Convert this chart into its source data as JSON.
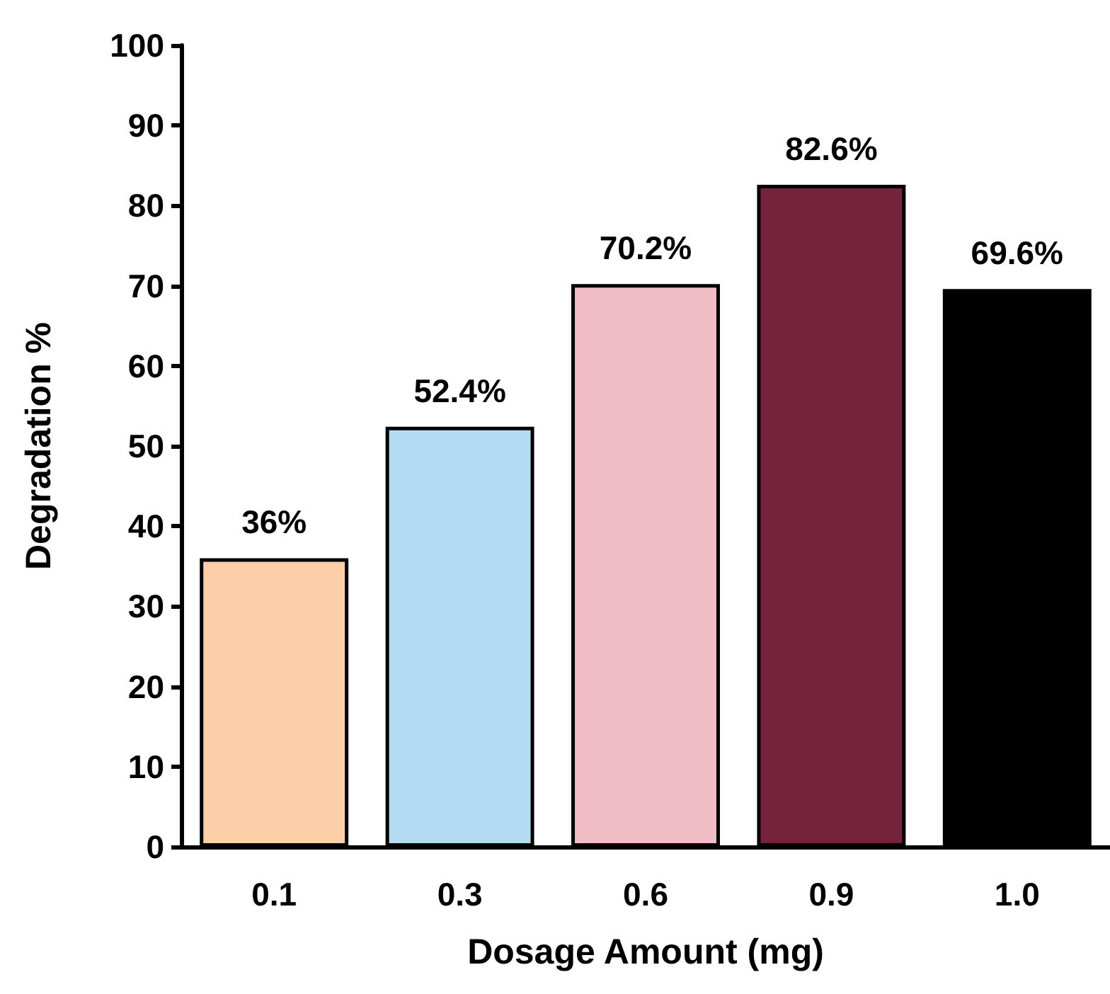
{
  "chart_data": {
    "type": "bar",
    "xlabel": "Dosage Amount (mg)",
    "ylabel": "Degradation %",
    "categories": [
      "0.1",
      "0.3",
      "0.6",
      "0.9",
      "1.0"
    ],
    "values": [
      36,
      52.4,
      70.2,
      82.6,
      69.6
    ],
    "value_labels": [
      "36%",
      "52.4%",
      "70.2%",
      "82.6%",
      "69.6%"
    ],
    "colors": [
      "#fdcfa8",
      "#b3dcf3",
      "#f0bcc6",
      "#74233b",
      "#000000"
    ],
    "ylim": [
      0,
      100
    ],
    "yticks": [
      0,
      10,
      20,
      30,
      40,
      50,
      60,
      70,
      80,
      90,
      100
    ]
  }
}
